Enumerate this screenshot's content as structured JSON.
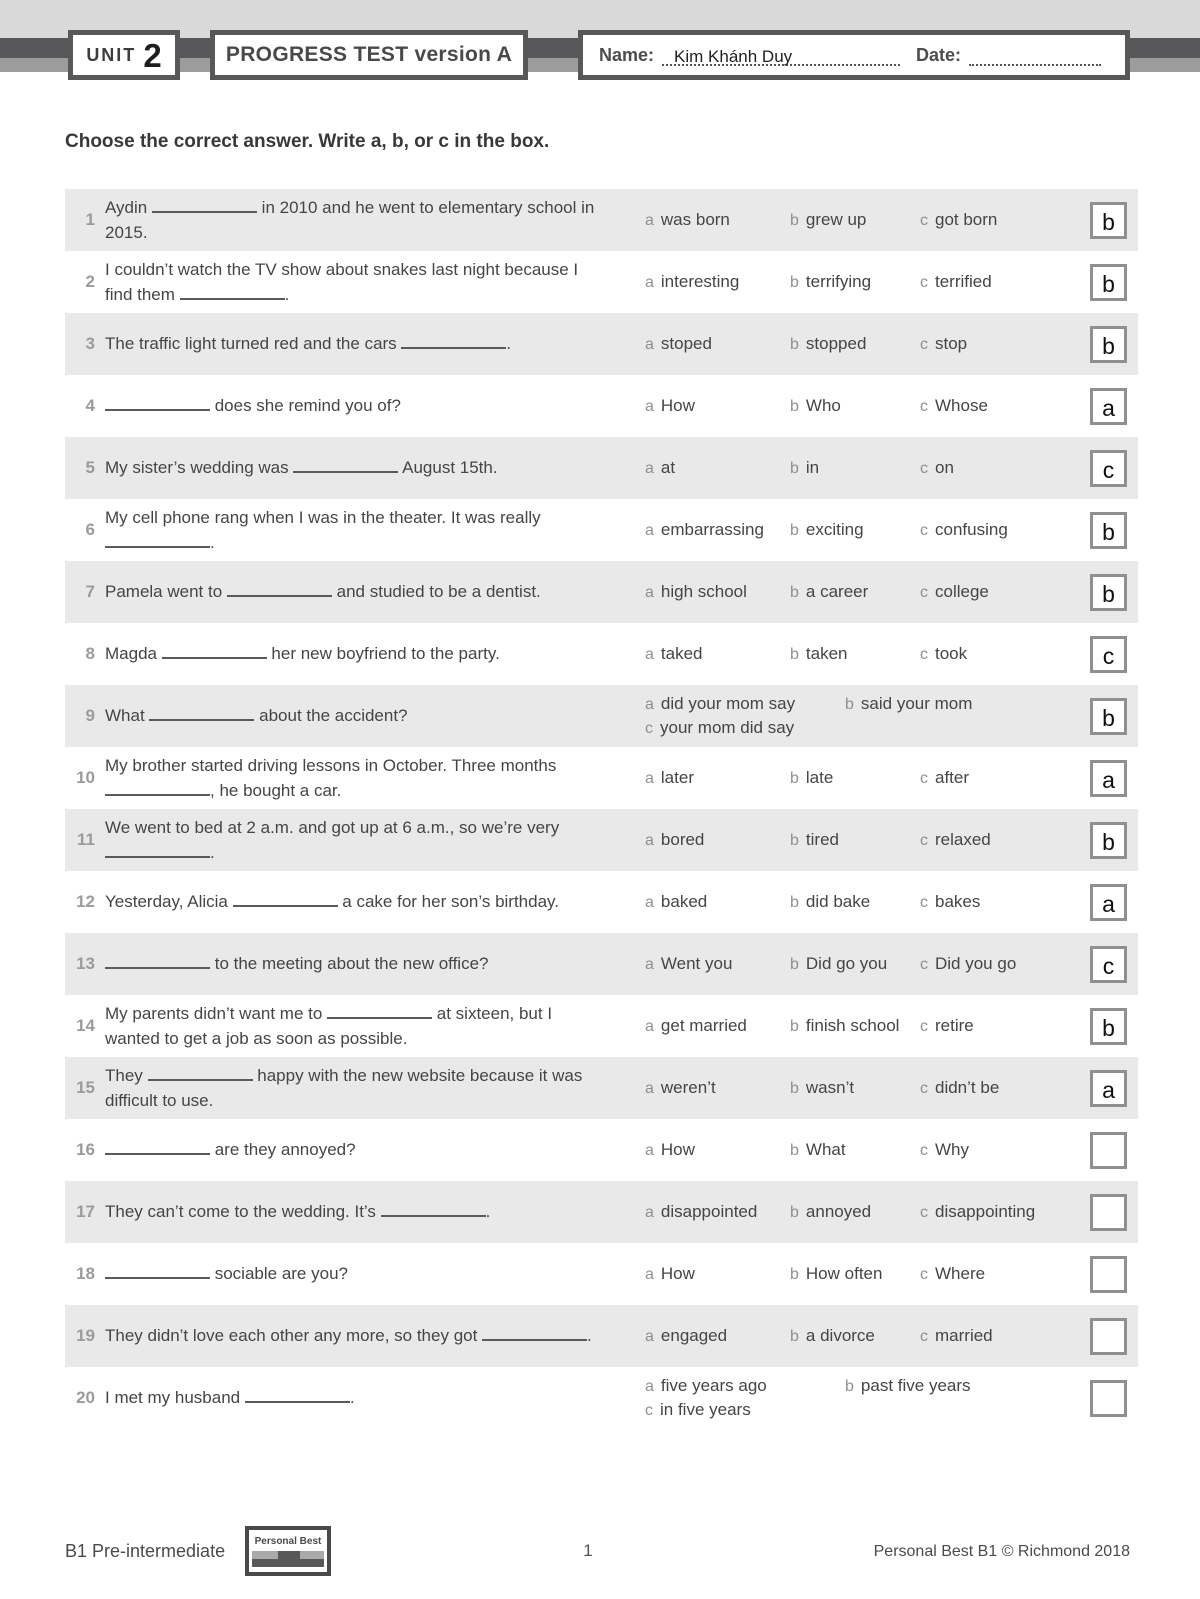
{
  "header": {
    "unit_label": "UNIT",
    "unit_number": "2",
    "title": "PROGRESS TEST version A",
    "name_label": "Name:",
    "name_value": "Kim Khánh Duy",
    "date_label": "Date:",
    "date_value": ""
  },
  "instruction": "Choose the correct answer. Write a, b, or c in the box.",
  "option_letters": [
    "a",
    "b",
    "c"
  ],
  "questions": [
    {
      "num": "1",
      "text": "Aydin ____ in 2010 and he went to elementary school in 2015.",
      "options": {
        "a": "was born",
        "b": "grew up",
        "c": "got born"
      },
      "answer": "b"
    },
    {
      "num": "2",
      "text": "I couldn’t watch the TV show about snakes last night because I find them ____.",
      "options": {
        "a": "interesting",
        "b": "terrifying",
        "c": "terrified"
      },
      "answer": "b"
    },
    {
      "num": "3",
      "text": "The traffic light turned red and the cars ____.",
      "options": {
        "a": "stoped",
        "b": "stopped",
        "c": "stop"
      },
      "answer": "b"
    },
    {
      "num": "4",
      "text": "____ does she remind you of?",
      "options": {
        "a": "How",
        "b": "Who",
        "c": "Whose"
      },
      "answer": "a"
    },
    {
      "num": "5",
      "text": "My sister’s wedding was ____ August 15th.",
      "options": {
        "a": "at",
        "b": "in",
        "c": "on"
      },
      "answer": "c"
    },
    {
      "num": "6",
      "text": "My cell phone rang when I was in the theater. It was really ____.",
      "options": {
        "a": "embarrassing",
        "b": "exciting",
        "c": "confusing"
      },
      "answer": "b"
    },
    {
      "num": "7",
      "text": "Pamela went to ____ and studied to be a dentist.",
      "options": {
        "a": "high school",
        "b": "a career",
        "c": "college"
      },
      "answer": "b"
    },
    {
      "num": "8",
      "text": "Magda ____ her new boyfriend to the party.",
      "options": {
        "a": "taked",
        "b": "taken",
        "c": "took"
      },
      "answer": "c"
    },
    {
      "num": "9",
      "text": "What ____ about the accident?",
      "options": {
        "a": "did your mom say",
        "b": "said your mom",
        "c": "your mom did say"
      },
      "answer": "b"
    },
    {
      "num": "10",
      "text": "My brother started driving lessons in October. Three months ____, he bought a car.",
      "options": {
        "a": "later",
        "b": "late",
        "c": "after"
      },
      "answer": "a"
    },
    {
      "num": "11",
      "text": "We went to bed at 2 a.m. and got up at 6 a.m., so we’re very ____.",
      "options": {
        "a": "bored",
        "b": "tired",
        "c": "relaxed"
      },
      "answer": "b"
    },
    {
      "num": "12",
      "text": "Yesterday, Alicia ____ a cake for her son’s birthday.",
      "options": {
        "a": "baked",
        "b": "did bake",
        "c": "bakes"
      },
      "answer": "a"
    },
    {
      "num": "13",
      "text": "____ to the meeting about the new office?",
      "options": {
        "a": "Went you",
        "b": "Did go you",
        "c": "Did you go"
      },
      "answer": "c"
    },
    {
      "num": "14",
      "text": "My parents didn’t want me to ____ at sixteen, but I wanted to get a job as soon as possible.",
      "options": {
        "a": "get married",
        "b": "finish school",
        "c": "retire"
      },
      "answer": "b"
    },
    {
      "num": "15",
      "text": "They ____ happy with the new website because it was difficult to use.",
      "options": {
        "a": "weren’t",
        "b": "wasn’t",
        "c": "didn’t be"
      },
      "answer": "a"
    },
    {
      "num": "16",
      "text": "____ are they annoyed?",
      "options": {
        "a": "How",
        "b": "What",
        "c": "Why"
      },
      "answer": ""
    },
    {
      "num": "17",
      "text": "They can’t come to the wedding. It’s ____.",
      "options": {
        "a": "disappointed",
        "b": "annoyed",
        "c": "disappointing"
      },
      "answer": ""
    },
    {
      "num": "18",
      "text": "____ sociable are you?",
      "options": {
        "a": "How",
        "b": "How often",
        "c": "Where"
      },
      "answer": ""
    },
    {
      "num": "19",
      "text": "They didn’t love each other any more, so they got ____.",
      "options": {
        "a": "engaged",
        "b": "a divorce",
        "c": "married"
      },
      "answer": ""
    },
    {
      "num": "20",
      "text": "I met my husband ____.",
      "options": {
        "a": "five years ago",
        "b": "past five years",
        "c": "in five years"
      },
      "answer": ""
    }
  ],
  "footer": {
    "level": "B1 Pre-intermediate",
    "logo_text": "Personal Best",
    "page_number": "1",
    "copyright": "Personal Best B1 © Richmond 2018"
  },
  "colors": {
    "bar_dark": "#58585a",
    "bar_mid": "#9c9c9c",
    "top_band": "#d9d9d9",
    "row_shade": "#e9e9e9",
    "answer_box_border": "#8f8f8f"
  }
}
